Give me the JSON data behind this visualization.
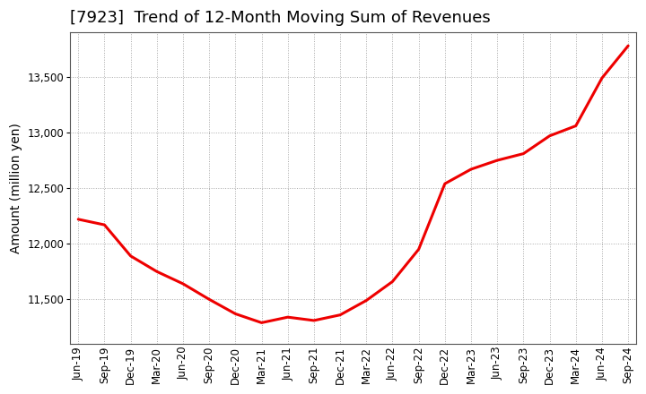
{
  "title": "[7923]  Trend of 12-Month Moving Sum of Revenues",
  "ylabel": "Amount (million yen)",
  "line_color": "#EE0000",
  "bg_color": "#FFFFFF",
  "plot_bg_color": "#FFFFFF",
  "grid_color": "#AAAAAA",
  "x_labels": [
    "Jun-19",
    "Sep-19",
    "Dec-19",
    "Mar-20",
    "Jun-20",
    "Sep-20",
    "Dec-20",
    "Mar-21",
    "Jun-21",
    "Sep-21",
    "Dec-21",
    "Mar-22",
    "Jun-22",
    "Sep-22",
    "Dec-22",
    "Mar-23",
    "Jun-23",
    "Sep-23",
    "Dec-23",
    "Mar-24",
    "Jun-24",
    "Sep-24"
  ],
  "x_values": [
    0,
    1,
    2,
    3,
    4,
    5,
    6,
    7,
    8,
    9,
    10,
    11,
    12,
    13,
    14,
    15,
    16,
    17,
    18,
    19,
    20,
    21
  ],
  "y_values": [
    12220,
    12170,
    11890,
    11750,
    11640,
    11500,
    11370,
    11290,
    11340,
    11310,
    11360,
    11490,
    11660,
    11950,
    12540,
    12670,
    12750,
    12810,
    12970,
    13060,
    13490,
    13780
  ],
  "ylim_min": 11100,
  "ylim_max": 13900,
  "yticks": [
    11500,
    12000,
    12500,
    13000,
    13500
  ],
  "title_fontsize": 13,
  "axis_label_fontsize": 10,
  "tick_fontsize": 8.5,
  "line_width": 2.2
}
